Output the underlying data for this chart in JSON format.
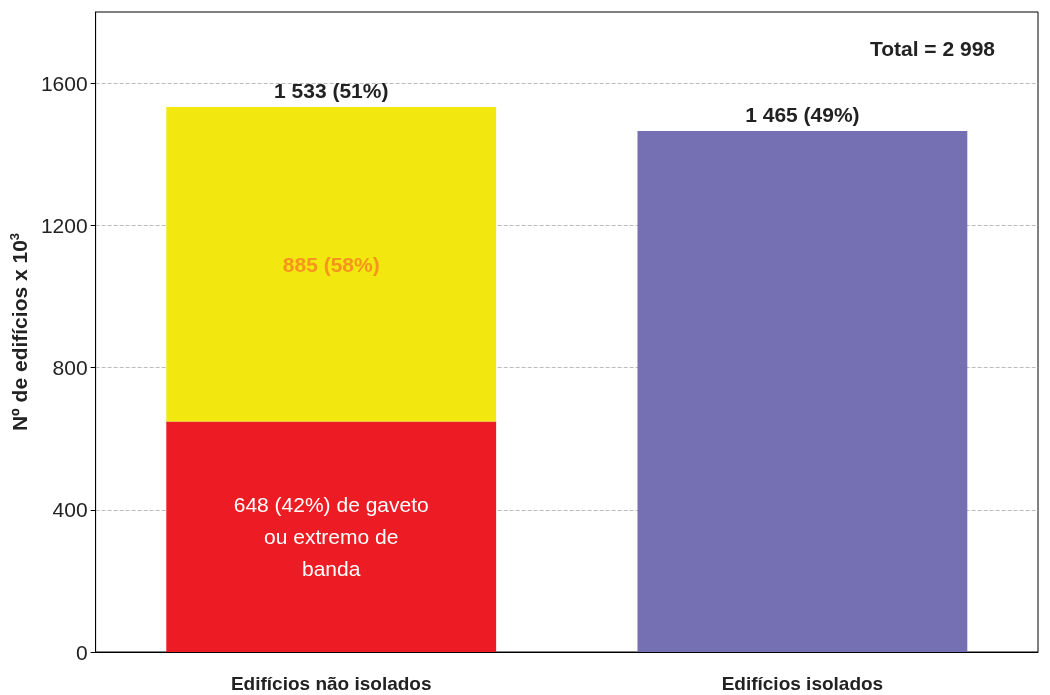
{
  "chart_data": {
    "type": "bar",
    "stacked": true,
    "ylabel": "Nº de edifícios x 10$^{3}$",
    "categories": [
      "Edifícios não isolados",
      "Edifícios isolados"
    ],
    "series": [
      {
        "color": "#ed1c24",
        "values": [
          648,
          null
        ],
        "value_labels": [
          "648 (42%) de gaveto ou extremo de banda",
          null
        ]
      },
      {
        "color": "#f2e70f",
        "values": [
          885,
          null
        ],
        "value_labels": [
          "885 (58%)",
          null
        ]
      },
      {
        "color": "#7570b3",
        "values": [
          null,
          1465
        ]
      }
    ],
    "totals": [
      "1 533 (51%)",
      "1 465 (49%)"
    ],
    "annotations": [
      "Total = 2 998"
    ],
    "ylim": [
      0,
      1800
    ],
    "yticks": [
      0,
      400,
      800,
      1200,
      1600
    ],
    "grid": "y"
  }
}
